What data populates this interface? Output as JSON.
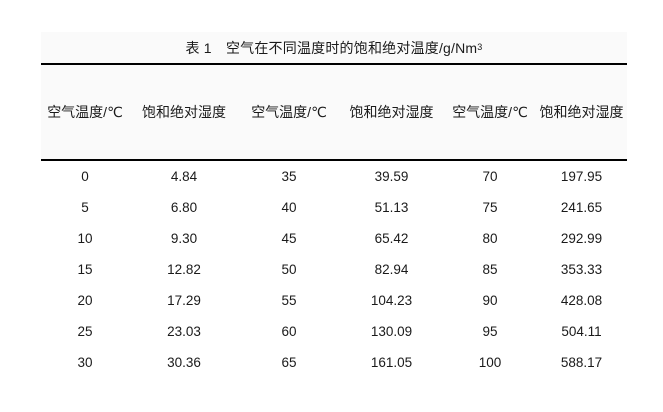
{
  "title": {
    "text": "表 1　空气在不同温度时的饱和绝对温度/g/Nm",
    "superscript": "3"
  },
  "table": {
    "headers": [
      "空气温度/℃",
      "饱和绝对湿度",
      "空气温度/℃",
      "饱和绝对湿度",
      "空气温度/℃",
      "饱和绝对湿度"
    ],
    "rows": [
      [
        "0",
        "4.84",
        "35",
        "39.59",
        "70",
        "197.95"
      ],
      [
        "5",
        "6.80",
        "40",
        "51.13",
        "75",
        "241.65"
      ],
      [
        "10",
        "9.30",
        "45",
        "65.42",
        "80",
        "292.99"
      ],
      [
        "15",
        "12.82",
        "50",
        "82.94",
        "85",
        "353.33"
      ],
      [
        "20",
        "17.29",
        "55",
        "104.23",
        "90",
        "428.08"
      ],
      [
        "25",
        "23.03",
        "60",
        "130.09",
        "95",
        "504.11"
      ],
      [
        "30",
        "30.36",
        "65",
        "161.05",
        "100",
        "588.17"
      ]
    ]
  },
  "colors": {
    "band_background": "#fafafa",
    "rule_line": "#000000",
    "text": "#1a1a1a"
  }
}
